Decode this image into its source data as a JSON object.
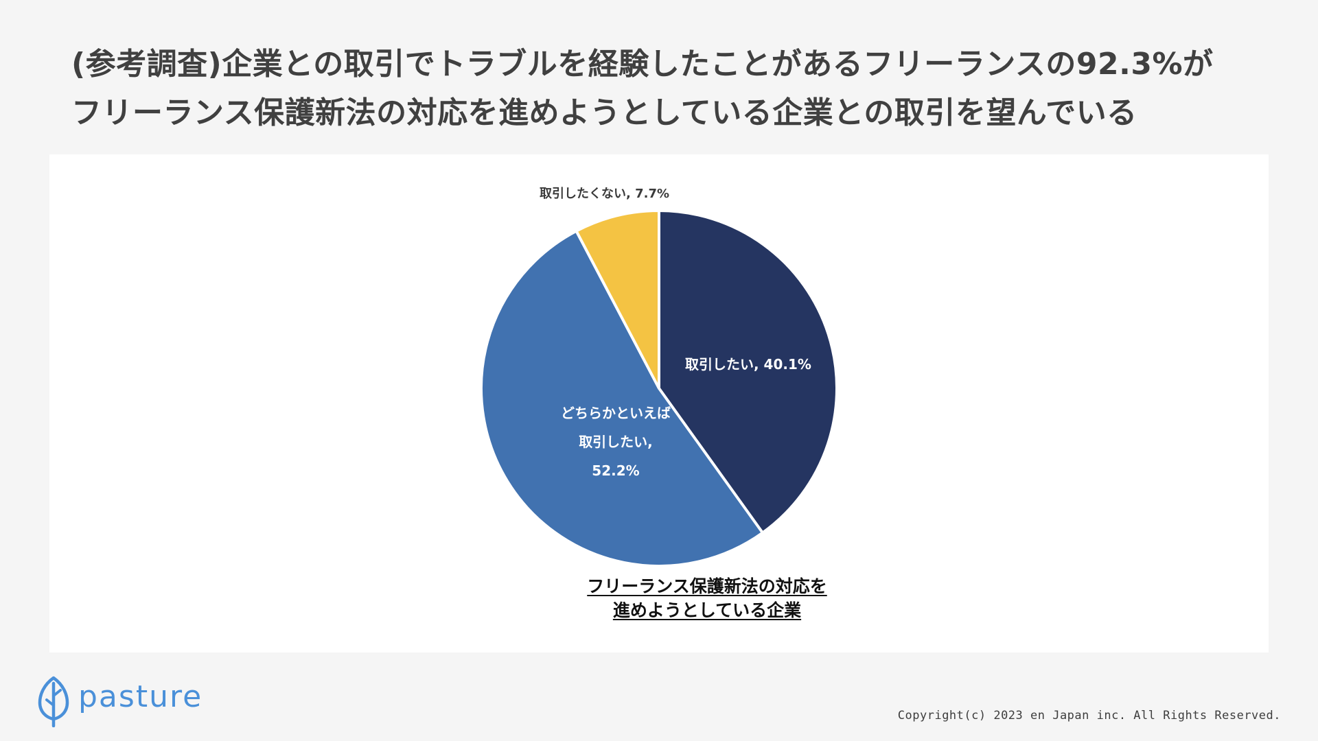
{
  "header": {
    "title_line1": "(参考調査)企業との取引でトラブルを経験したことがあるフリーランスの92.3%が",
    "title_line2": "フリーランス保護新法の対応を進めようとしている企業との取引を望んでいる"
  },
  "chart_data": {
    "type": "pie",
    "start_angle_deg": 0,
    "direction": "clockwise",
    "caption_line1": "フリーランス保護新法の対応を",
    "caption_line2": "進めようとしている企業",
    "slices": [
      {
        "label": "取引したい, 40.1%",
        "value": 40.1,
        "color": "#253561"
      },
      {
        "label_line1": "どちらかといえば",
        "label_line2": "取引したい,",
        "label_line3": "52.2%",
        "value": 52.2,
        "color": "#4172b0"
      },
      {
        "label": "取引したくない, 7.7%",
        "value": 7.7,
        "color": "#f4c343"
      }
    ]
  },
  "footer": {
    "logo_text": "pasture",
    "logo_icon": "leaf-icon",
    "brand_color": "#4a90d9",
    "copyright": "Copyright(c) 2023 en Japan inc. All Rights Reserved."
  }
}
